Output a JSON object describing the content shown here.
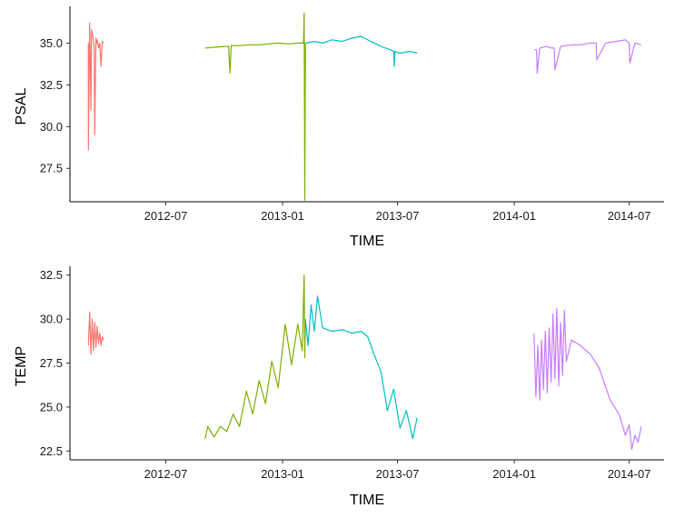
{
  "chart_data": [
    {
      "type": "line",
      "ylabel": "PSAL",
      "xlabel": "TIME",
      "xlim": [
        "2012-02-01",
        "2014-08-25"
      ],
      "ylim": [
        25.5,
        37.2
      ],
      "x_ticks": [
        "2012-07",
        "2013-01",
        "2013-07",
        "2014-01",
        "2014-07"
      ],
      "x_tick_dates": [
        "2012-07-01",
        "2013-01-01",
        "2013-07-01",
        "2014-01-01",
        "2014-07-01"
      ],
      "y_ticks": [
        "27.5",
        "30.0",
        "32.5",
        "35.0"
      ],
      "y_tick_values": [
        27.5,
        30.0,
        32.5,
        35.0
      ],
      "grid": false,
      "legend": "none",
      "series": [
        {
          "color": "#F8766D",
          "x": [
            "2012-03-01",
            "2012-03-01",
            "2012-03-03",
            "2012-03-04",
            "2012-03-05",
            "2012-03-06",
            "2012-03-08",
            "2012-03-10",
            "2012-03-11",
            "2012-03-13",
            "2012-03-14",
            "2012-03-15",
            "2012-03-17",
            "2012-03-19",
            "2012-03-21",
            "2012-03-23",
            "2012-03-25"
          ],
          "y": [
            35.0,
            28.6,
            36.2,
            34.0,
            31.0,
            35.8,
            35.4,
            34.8,
            29.5,
            35.3,
            35.0,
            35.2,
            34.7,
            35.0,
            33.6,
            35.1,
            35.0
          ]
        },
        {
          "color": "#7CAE00",
          "x": [
            "2012-09-01",
            "2012-09-15",
            "2012-10-01",
            "2012-10-08",
            "2012-10-10",
            "2012-10-12",
            "2012-10-25",
            "2012-11-10",
            "2012-11-25",
            "2012-12-10",
            "2012-12-25",
            "2013-01-10",
            "2013-01-25",
            "2013-02-03",
            "2013-02-04",
            "2013-02-05",
            "2013-02-06"
          ],
          "y": [
            34.7,
            34.75,
            34.8,
            34.8,
            33.2,
            34.85,
            34.85,
            34.9,
            34.9,
            34.95,
            35.0,
            34.95,
            35.0,
            35.0,
            36.8,
            25.6,
            35.0
          ]
        },
        {
          "color": "#00BFC4",
          "x": [
            "2013-02-06",
            "2013-02-20",
            "2013-03-05",
            "2013-03-20",
            "2013-04-05",
            "2013-04-20",
            "2013-05-05",
            "2013-05-20",
            "2013-06-05",
            "2013-06-20",
            "2013-06-25",
            "2013-06-26",
            "2013-06-27",
            "2013-07-05",
            "2013-07-20",
            "2013-08-01"
          ],
          "y": [
            35.0,
            35.1,
            35.0,
            35.2,
            35.1,
            35.3,
            35.4,
            35.1,
            34.8,
            34.6,
            34.5,
            33.6,
            34.5,
            34.4,
            34.5,
            34.4
          ]
        },
        {
          "color": "#C77CFF",
          "x": [
            "2014-02-01",
            "2014-02-05",
            "2014-02-06",
            "2014-02-10",
            "2014-02-20",
            "2014-03-01",
            "2014-03-05",
            "2014-03-06",
            "2014-03-15",
            "2014-04-01",
            "2014-04-15",
            "2014-05-01",
            "2014-05-10",
            "2014-05-11",
            "2014-05-25",
            "2014-06-10",
            "2014-06-25",
            "2014-07-01",
            "2014-07-02",
            "2014-07-10",
            "2014-07-20"
          ],
          "y": [
            34.6,
            34.6,
            33.2,
            34.7,
            34.8,
            34.7,
            34.7,
            33.4,
            34.8,
            34.9,
            34.9,
            35.0,
            35.0,
            34.0,
            35.0,
            35.1,
            35.2,
            35.0,
            33.8,
            35.0,
            34.9
          ]
        }
      ]
    },
    {
      "type": "line",
      "ylabel": "TEMP",
      "xlabel": "TIME",
      "xlim": [
        "2012-02-01",
        "2014-08-25"
      ],
      "ylim": [
        22.0,
        33.0
      ],
      "x_ticks": [
        "2012-07",
        "2013-01",
        "2013-07",
        "2014-01",
        "2014-07"
      ],
      "x_tick_dates": [
        "2012-07-01",
        "2013-01-01",
        "2013-07-01",
        "2014-01-01",
        "2014-07-01"
      ],
      "y_ticks": [
        "22.5",
        "25.0",
        "27.5",
        "30.0",
        "32.5"
      ],
      "y_tick_values": [
        22.5,
        25.0,
        27.5,
        30.0,
        32.5
      ],
      "grid": false,
      "legend": "none",
      "series": [
        {
          "color": "#F8766D",
          "x": [
            "2012-03-01",
            "2012-03-03",
            "2012-03-05",
            "2012-03-07",
            "2012-03-09",
            "2012-03-11",
            "2012-03-13",
            "2012-03-15",
            "2012-03-17",
            "2012-03-19",
            "2012-03-21",
            "2012-03-23",
            "2012-03-25"
          ],
          "y": [
            28.5,
            30.4,
            28.0,
            30.0,
            28.2,
            29.8,
            28.4,
            29.6,
            28.6,
            29.2,
            28.5,
            29.0,
            28.8
          ]
        },
        {
          "color": "#7CAE00",
          "x": [
            "2012-09-01",
            "2012-09-05",
            "2012-09-15",
            "2012-09-25",
            "2012-10-05",
            "2012-10-15",
            "2012-10-25",
            "2012-11-05",
            "2012-11-15",
            "2012-11-25",
            "2012-12-05",
            "2012-12-15",
            "2012-12-25",
            "2013-01-05",
            "2013-01-15",
            "2013-01-25",
            "2013-02-01",
            "2013-02-04",
            "2013-02-05",
            "2013-02-06"
          ],
          "y": [
            23.2,
            23.9,
            23.3,
            23.9,
            23.6,
            24.6,
            23.9,
            25.9,
            24.6,
            26.5,
            25.2,
            27.6,
            26.1,
            29.7,
            27.4,
            29.7,
            28.2,
            32.5,
            27.8,
            30.0
          ]
        },
        {
          "color": "#00BFC4",
          "x": [
            "2013-02-06",
            "2013-02-10",
            "2013-02-15",
            "2013-02-20",
            "2013-02-25",
            "2013-03-05",
            "2013-03-20",
            "2013-04-05",
            "2013-04-20",
            "2013-05-05",
            "2013-05-15",
            "2013-05-25",
            "2013-06-05",
            "2013-06-15",
            "2013-06-25",
            "2013-07-05",
            "2013-07-15",
            "2013-07-25",
            "2013-08-01"
          ],
          "y": [
            30.0,
            28.5,
            30.8,
            29.3,
            31.3,
            29.5,
            29.3,
            29.4,
            29.2,
            29.3,
            29.0,
            28.0,
            27.0,
            24.8,
            26.0,
            23.8,
            24.8,
            23.2,
            24.4
          ]
        },
        {
          "color": "#C77CFF",
          "x": [
            "2014-02-01",
            "2014-02-04",
            "2014-02-07",
            "2014-02-10",
            "2014-02-13",
            "2014-02-16",
            "2014-02-19",
            "2014-02-22",
            "2014-02-25",
            "2014-02-28",
            "2014-03-03",
            "2014-03-06",
            "2014-03-09",
            "2014-03-12",
            "2014-03-15",
            "2014-03-18",
            "2014-03-21",
            "2014-03-24",
            "2014-04-01",
            "2014-04-15",
            "2014-05-01",
            "2014-05-15",
            "2014-06-01",
            "2014-06-15",
            "2014-06-25",
            "2014-07-01",
            "2014-07-05",
            "2014-07-10",
            "2014-07-15",
            "2014-07-20"
          ],
          "y": [
            29.2,
            25.6,
            28.5,
            25.4,
            28.8,
            26.0,
            29.3,
            25.8,
            29.5,
            26.4,
            30.3,
            26.6,
            30.6,
            26.2,
            29.8,
            26.8,
            30.5,
            27.6,
            28.8,
            28.5,
            28.0,
            27.2,
            25.4,
            24.6,
            23.4,
            24.0,
            22.6,
            23.4,
            23.0,
            23.9
          ]
        }
      ]
    }
  ]
}
